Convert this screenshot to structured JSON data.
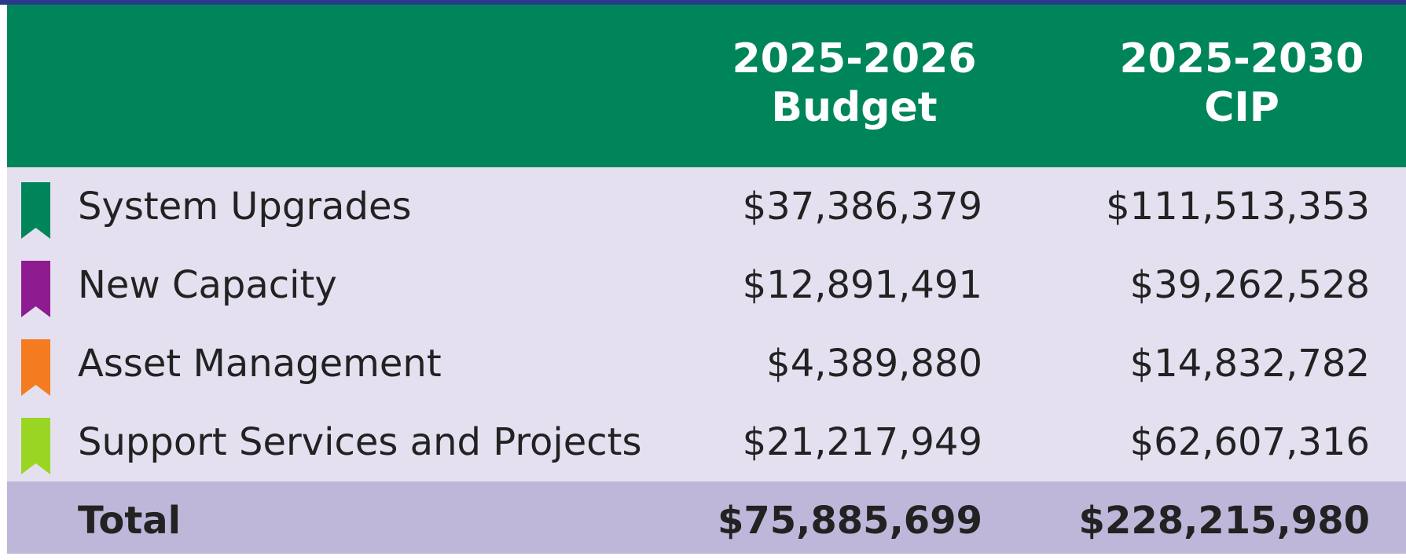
{
  "table": {
    "columns": [
      [
        "2025-2026",
        "Budget"
      ],
      [
        "2025-2030",
        "CIP"
      ]
    ],
    "rows": [
      {
        "label": "System Upgrades",
        "color": "#00855a",
        "values": [
          "$37,386,379",
          "$111,513,353"
        ]
      },
      {
        "label": "New Capacity",
        "color": "#8e1b8f",
        "values": [
          "$12,891,491",
          "$39,262,528"
        ]
      },
      {
        "label": "Asset Management",
        "color": "#f47b20",
        "values": [
          "$4,389,880",
          "$14,832,782"
        ]
      },
      {
        "label": "Support Services and Projects",
        "color": "#9ad523",
        "values": [
          "$21,217,949",
          "$62,607,316"
        ]
      }
    ],
    "total": {
      "label": "Total",
      "values": [
        "$75,885,699",
        "$228,215,980"
      ]
    }
  }
}
